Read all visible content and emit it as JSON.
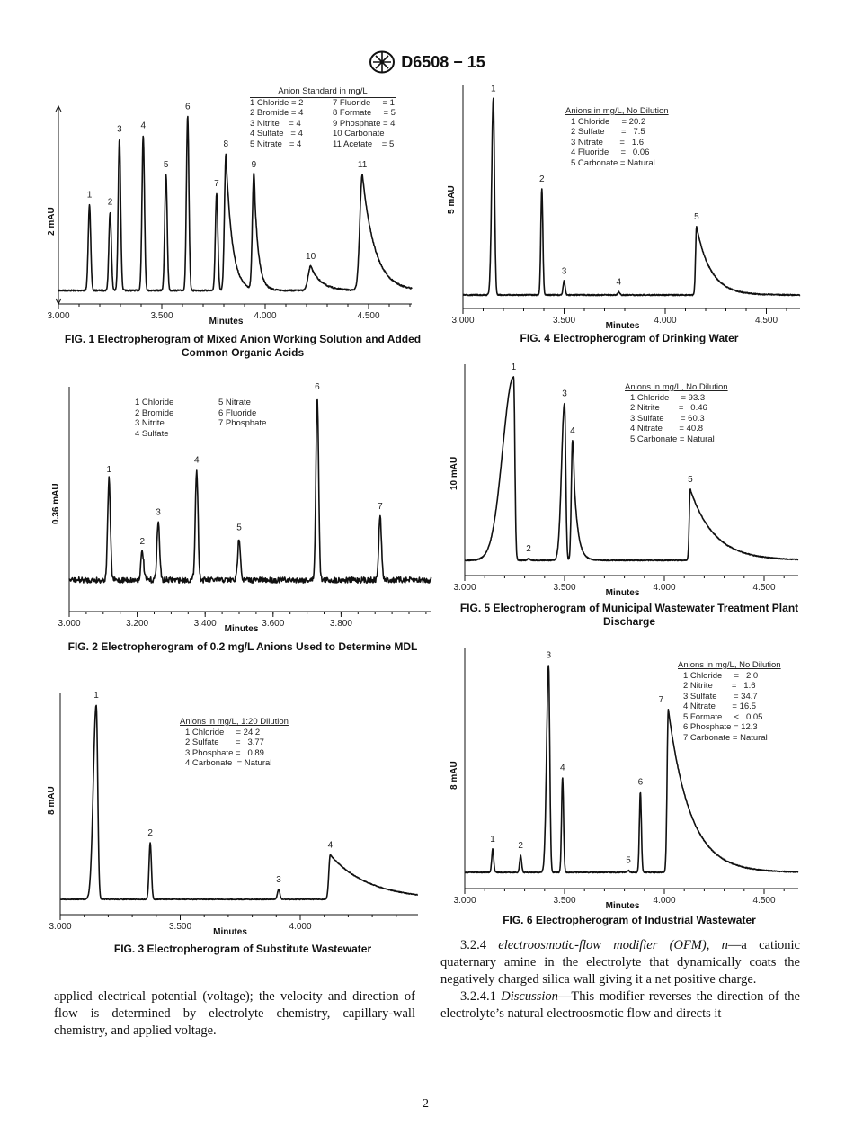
{
  "header": {
    "logo": "ASTM",
    "doc_id": "D6508 − 15"
  },
  "chart_data": [
    {
      "type": "line",
      "title": "FIG. 1 Electropherogram of Mixed Anion Working Solution and Added Common Organic Acids",
      "xlabel": "Minutes",
      "ylabel": "2 mAU",
      "xlim": [
        3.0,
        4.7
      ],
      "xticks": [
        "3.000",
        "3.500",
        "4.000",
        "4.500"
      ],
      "legend_title": "Anion Standard in mg/L",
      "legend": [
        [
          "1 Chloride = 2",
          "7 Fluoride     = 1"
        ],
        [
          "2 Bromide = 4",
          "8 Formate     = 5"
        ],
        [
          "3 Nitrite    = 4",
          "9 Phosphate = 4"
        ],
        [
          "4 Sulfate   = 4",
          "10 Carbonate"
        ],
        [
          "5 Nitrate   = 4",
          "11 Acetate    = 5"
        ]
      ],
      "peaks": [
        {
          "label": "1",
          "time": 3.15,
          "height": 0.46
        },
        {
          "label": "2",
          "time": 3.25,
          "height": 0.42
        },
        {
          "label": "3",
          "time": 3.295,
          "height": 0.81
        },
        {
          "label": "4",
          "time": 3.41,
          "height": 0.83
        },
        {
          "label": "5",
          "time": 3.52,
          "height": 0.62
        },
        {
          "label": "6",
          "time": 3.625,
          "height": 0.93
        },
        {
          "label": "7",
          "time": 3.765,
          "height": 0.52
        },
        {
          "label": "8",
          "time": 3.81,
          "height": 0.73
        },
        {
          "label": "9",
          "time": 3.945,
          "height": 0.62
        },
        {
          "label": "10",
          "time": 4.22,
          "height": 0.13
        },
        {
          "label": "11",
          "time": 4.47,
          "height": 0.62
        }
      ]
    },
    {
      "type": "line",
      "title": "FIG. 2 Electropherogram of 0.2 mg/L Anions Used to Determine MDL",
      "xlabel": "Minutes",
      "ylabel": "0.36 mAU",
      "xlim": [
        3.0,
        4.07
      ],
      "xticks": [
        "3.000",
        "3.200",
        "3.400",
        "3.600",
        "3.800"
      ],
      "legend_title": "",
      "legend": [
        [
          "1 Chloride",
          "5 Nitrate"
        ],
        [
          "2 Bromide",
          "6 Fluoride"
        ],
        [
          "3 Nitrite",
          "7 Phosphate"
        ],
        [
          "4 Sulfate",
          ""
        ]
      ],
      "peaks": [
        {
          "label": "1",
          "time": 3.117,
          "height": 0.52
        },
        {
          "label": "2",
          "time": 3.215,
          "height": 0.15
        },
        {
          "label": "3",
          "time": 3.262,
          "height": 0.3
        },
        {
          "label": "4",
          "time": 3.375,
          "height": 0.57
        },
        {
          "label": "5",
          "time": 3.5,
          "height": 0.22
        },
        {
          "label": "6",
          "time": 3.73,
          "height": 0.95
        },
        {
          "label": "7",
          "time": 3.915,
          "height": 0.33
        }
      ]
    },
    {
      "type": "line",
      "title": "FIG. 3 Electropherogram of Substitute Wastewater",
      "xlabel": "Minutes",
      "ylabel": "8 mAU",
      "xlim": [
        3.0,
        4.5
      ],
      "xticks": [
        "3.000",
        "3.500",
        "4.000"
      ],
      "legend_title": "Anions in mg/L, 1:20 Dilution",
      "legend": [
        [
          "1 Chloride     = 24.2"
        ],
        [
          "2 Sulfate       =   3.77"
        ],
        [
          "3 Phosphate =   0.89"
        ],
        [
          "4 Carbonate  = Natural"
        ]
      ],
      "peaks": [
        {
          "label": "1",
          "time": 3.15,
          "height": 0.96
        },
        {
          "label": "2",
          "time": 3.375,
          "height": 0.28
        },
        {
          "label": "3",
          "time": 3.91,
          "height": 0.05
        },
        {
          "label": "4",
          "time": 4.125,
          "height": 0.22
        }
      ]
    },
    {
      "type": "line",
      "title": "FIG. 4 Electropherogram of Drinking Water",
      "xlabel": "Minutes",
      "ylabel": "5 mAU",
      "xlim": [
        3.0,
        4.67
      ],
      "xticks": [
        "3.000",
        "3.500",
        "4.000",
        "4.500"
      ],
      "legend_title": "Anions in mg/L, No Dilution",
      "legend": [
        [
          "1 Chloride     = 20.2"
        ],
        [
          "2 Sulfate       =   7.5"
        ],
        [
          "3 Nitrate       =   1.6"
        ],
        [
          "4 Fluoride     =   0.06"
        ],
        [
          "5 Carbonate = Natural"
        ]
      ],
      "peaks": [
        {
          "label": "1",
          "time": 3.15,
          "height": 0.98
        },
        {
          "label": "2",
          "time": 3.39,
          "height": 0.53
        },
        {
          "label": "3",
          "time": 3.5,
          "height": 0.07
        },
        {
          "label": "4",
          "time": 3.77,
          "height": 0.015
        },
        {
          "label": "5",
          "time": 4.155,
          "height": 0.34
        }
      ]
    },
    {
      "type": "line",
      "title": "FIG. 5 Electropherogram of Municipal Wastewater Treatment Plant Discharge",
      "xlabel": "Minutes",
      "ylabel": "10 mAU",
      "xlim": [
        3.0,
        4.67
      ],
      "xticks": [
        "3.000",
        "3.500",
        "4.000",
        "4.500"
      ],
      "legend_title": "Anions in mg/L, No Dilution",
      "legend": [
        [
          "1 Chloride     = 93.3"
        ],
        [
          "2 Nitrite        =   0.46"
        ],
        [
          "3 Sulfate       = 60.3"
        ],
        [
          "4 Nitrate       = 40.8"
        ],
        [
          "5 Carbonate = Natural"
        ]
      ],
      "peaks": [
        {
          "label": "1",
          "time": 3.245,
          "height": 0.98
        },
        {
          "label": "2",
          "time": 3.32,
          "height": 0.01
        },
        {
          "label": "3",
          "time": 3.5,
          "height": 0.84
        },
        {
          "label": "4",
          "time": 3.54,
          "height": 0.64
        },
        {
          "label": "5",
          "time": 4.13,
          "height": 0.38
        }
      ]
    },
    {
      "type": "line",
      "title": "FIG. 6 Electropherogram of Industrial Wastewater",
      "xlabel": "Minutes",
      "ylabel": "8 mAU",
      "xlim": [
        3.0,
        4.67
      ],
      "xticks": [
        "3.000",
        "3.500",
        "4.000",
        "4.500"
      ],
      "legend_title": "Anions in mg/L, No Dilution",
      "legend": [
        [
          "1 Chloride     =   2.0"
        ],
        [
          "2 Nitrite        =   1.6"
        ],
        [
          "3 Sulfate       = 34.7"
        ],
        [
          "4 Nitrate       = 16.5"
        ],
        [
          "5 Formate     <   0.05"
        ],
        [
          "6 Phosphate = 12.3"
        ],
        [
          "7 Carbonate = Natural"
        ]
      ],
      "peaks": [
        {
          "label": "1",
          "time": 3.14,
          "height": 0.11
        },
        {
          "label": "2",
          "time": 3.28,
          "height": 0.08
        },
        {
          "label": "3",
          "time": 3.42,
          "height": 0.98
        },
        {
          "label": "4",
          "time": 3.49,
          "height": 0.45
        },
        {
          "label": "5",
          "time": 3.82,
          "height": 0.01
        },
        {
          "label": "6",
          "time": 3.88,
          "height": 0.38
        },
        {
          "label": "7",
          "time": 4.02,
          "height": 0.77
        }
      ]
    }
  ],
  "text": {
    "left_para": "applied electrical potential (voltage); the velocity and direction of flow is determined by electrolyte chemistry, capillary-wall chemistry, and applied voltage.",
    "p324_num": "3.2.4 ",
    "p324_term": "electroosmotic-flow modifier (OFM), n",
    "p324_body": "—a cationic quaternary amine in the electrolyte that dynamically coats the negatively charged silica wall giving it a net positive charge.",
    "p3241_num": "3.2.4.1 ",
    "p3241_term": "Discussion",
    "p3241_body": "—This modifier reverses the direction of the electrolyte’s natural electroosmotic flow and directs it"
  },
  "page_number": "2"
}
